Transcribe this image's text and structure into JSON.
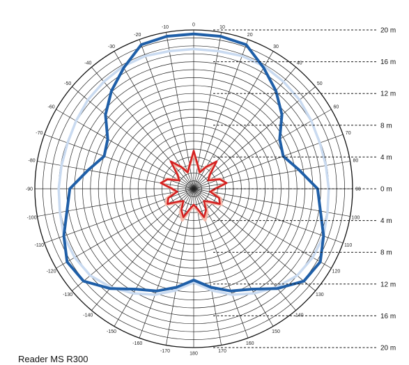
{
  "chart_data": {
    "type": "polar",
    "angle_labels": [
      {
        "deg": 0,
        "text": "0"
      },
      {
        "deg": 10,
        "text": "10"
      },
      {
        "deg": 20,
        "text": "20"
      },
      {
        "deg": 30,
        "text": "30"
      },
      {
        "deg": 40,
        "text": "40"
      },
      {
        "deg": 50,
        "text": "50"
      },
      {
        "deg": 60,
        "text": "60"
      },
      {
        "deg": 70,
        "text": "70"
      },
      {
        "deg": 80,
        "text": "80"
      },
      {
        "deg": 90,
        "text": "90"
      },
      {
        "deg": 100,
        "text": "100"
      },
      {
        "deg": 110,
        "text": "110"
      },
      {
        "deg": 120,
        "text": "120"
      },
      {
        "deg": 130,
        "text": "130"
      },
      {
        "deg": 140,
        "text": "140"
      },
      {
        "deg": 150,
        "text": "150"
      },
      {
        "deg": 160,
        "text": "160"
      },
      {
        "deg": 170,
        "text": "170"
      },
      {
        "deg": 180,
        "text": "180"
      },
      {
        "deg": -10,
        "text": "-10"
      },
      {
        "deg": -20,
        "text": "-20"
      },
      {
        "deg": -30,
        "text": "-30"
      },
      {
        "deg": -40,
        "text": "-40"
      },
      {
        "deg": -50,
        "text": "-50"
      },
      {
        "deg": -60,
        "text": "-60"
      },
      {
        "deg": -70,
        "text": "-70"
      },
      {
        "deg": -80,
        "text": "-80"
      },
      {
        "deg": -90,
        "text": "-90"
      },
      {
        "deg": -100,
        "text": "-100"
      },
      {
        "deg": -110,
        "text": "-110"
      },
      {
        "deg": -120,
        "text": "-120"
      },
      {
        "deg": -130,
        "text": "-130"
      },
      {
        "deg": -140,
        "text": "-140"
      },
      {
        "deg": -150,
        "text": "-150"
      },
      {
        "deg": -160,
        "text": "-160"
      },
      {
        "deg": -170,
        "text": "-170"
      }
    ],
    "distance_labels": [
      {
        "value": 20,
        "text": "20 m"
      },
      {
        "value": 16,
        "text": "16 m"
      },
      {
        "value": 12,
        "text": "12 m"
      },
      {
        "value": 8,
        "text": "8 m"
      },
      {
        "value": 4,
        "text": "4 m"
      },
      {
        "value": 0,
        "text": "0 m"
      },
      {
        "value": -4,
        "text": "4 m"
      },
      {
        "value": -8,
        "text": "8 m"
      },
      {
        "value": -12,
        "text": "12 m"
      },
      {
        "value": -16,
        "text": "16 m"
      },
      {
        "value": -20,
        "text": "20 m"
      }
    ],
    "radial_range_m": [
      0,
      20
    ],
    "series": [
      {
        "color": "#1f5fa8",
        "points": [
          [
            0,
            19.5
          ],
          [
            10,
            19.5
          ],
          [
            20,
            19.3
          ],
          [
            30,
            17.6
          ],
          [
            40,
            16.1
          ],
          [
            50,
            14.5
          ],
          [
            60,
            12.5
          ],
          [
            70,
            12.0
          ],
          [
            80,
            13.5
          ],
          [
            90,
            15.6
          ],
          [
            100,
            16.2
          ],
          [
            110,
            17.4
          ],
          [
            120,
            18.4
          ],
          [
            130,
            18.1
          ],
          [
            140,
            16.4
          ],
          [
            150,
            14.6
          ],
          [
            160,
            13.7
          ],
          [
            170,
            12.6
          ],
          [
            180,
            11.5
          ],
          [
            -170,
            12.6
          ],
          [
            -160,
            13.7
          ],
          [
            -150,
            14.6
          ],
          [
            -140,
            16.4
          ],
          [
            -130,
            18.1
          ],
          [
            -120,
            18.4
          ],
          [
            -110,
            17.4
          ],
          [
            -100,
            16.2
          ],
          [
            -90,
            15.6
          ],
          [
            -80,
            13.5
          ],
          [
            -70,
            12.0
          ],
          [
            -60,
            12.5
          ],
          [
            -50,
            14.5
          ],
          [
            -40,
            16.1
          ],
          [
            -30,
            17.6
          ],
          [
            -20,
            19.3
          ],
          [
            -10,
            19.5
          ]
        ]
      },
      {
        "color": "#c9daf0",
        "points": [
          [
            0,
            17.6
          ],
          [
            10,
            17.6
          ],
          [
            20,
            17.8
          ],
          [
            30,
            17.8
          ],
          [
            40,
            17.6
          ],
          [
            50,
            17.4
          ],
          [
            60,
            17.1
          ],
          [
            70,
            16.9
          ],
          [
            80,
            16.9
          ],
          [
            90,
            17.0
          ],
          [
            100,
            17.1
          ],
          [
            110,
            17.4
          ],
          [
            120,
            17.3
          ],
          [
            130,
            17.0
          ],
          [
            140,
            16.2
          ],
          [
            150,
            15.2
          ],
          [
            160,
            14.2
          ],
          [
            170,
            13.0
          ],
          [
            180,
            11.8
          ],
          [
            -170,
            13.0
          ],
          [
            -160,
            14.2
          ],
          [
            -150,
            15.2
          ],
          [
            -140,
            16.2
          ],
          [
            -130,
            17.0
          ],
          [
            -120,
            17.3
          ],
          [
            -110,
            17.4
          ],
          [
            -100,
            17.1
          ],
          [
            -90,
            17.0
          ],
          [
            -80,
            16.9
          ],
          [
            -70,
            16.9
          ],
          [
            -60,
            17.1
          ],
          [
            -50,
            17.4
          ],
          [
            -40,
            17.6
          ],
          [
            -30,
            17.8
          ],
          [
            -20,
            17.8
          ],
          [
            -10,
            17.6
          ]
        ]
      },
      {
        "color": "#f2b7a8",
        "points": [
          [
            0,
            4.4
          ],
          [
            10,
            3.0
          ],
          [
            20,
            2.2
          ],
          [
            30,
            3.2
          ],
          [
            40,
            4.0
          ],
          [
            50,
            2.6
          ],
          [
            60,
            2.2
          ],
          [
            70,
            3.6
          ],
          [
            80,
            4.1
          ],
          [
            90,
            2.7
          ],
          [
            100,
            2.3
          ],
          [
            110,
            3.6
          ],
          [
            120,
            4.0
          ],
          [
            130,
            2.7
          ],
          [
            140,
            2.2
          ],
          [
            150,
            3.4
          ],
          [
            160,
            4.2
          ],
          [
            170,
            2.7
          ],
          [
            180,
            2.2
          ],
          [
            -170,
            2.7
          ],
          [
            -160,
            4.2
          ],
          [
            -150,
            3.4
          ],
          [
            -140,
            2.2
          ],
          [
            -130,
            2.7
          ],
          [
            -120,
            4.0
          ],
          [
            -110,
            3.6
          ],
          [
            -100,
            2.3
          ],
          [
            -90,
            2.7
          ],
          [
            -80,
            4.1
          ],
          [
            -70,
            3.6
          ],
          [
            -60,
            2.2
          ],
          [
            -50,
            2.6
          ],
          [
            -40,
            4.0
          ],
          [
            -30,
            3.2
          ],
          [
            -20,
            2.2
          ],
          [
            -10,
            3.0
          ]
        ]
      },
      {
        "color": "#d42020",
        "points": [
          [
            0,
            4.8
          ],
          [
            10,
            3.0
          ],
          [
            20,
            2.2
          ],
          [
            30,
            3.2
          ],
          [
            40,
            4.5
          ],
          [
            50,
            2.6
          ],
          [
            60,
            2.1
          ],
          [
            70,
            3.5
          ],
          [
            80,
            4.2
          ],
          [
            90,
            2.7
          ],
          [
            100,
            2.1
          ],
          [
            110,
            3.4
          ],
          [
            120,
            3.8
          ],
          [
            130,
            2.5
          ],
          [
            140,
            2.0
          ],
          [
            150,
            3.1
          ],
          [
            160,
            3.8
          ],
          [
            170,
            2.5
          ],
          [
            180,
            2.0
          ],
          [
            -170,
            2.5
          ],
          [
            -160,
            3.8
          ],
          [
            -150,
            3.1
          ],
          [
            -140,
            2.0
          ],
          [
            -130,
            2.5
          ],
          [
            -120,
            3.8
          ],
          [
            -110,
            3.4
          ],
          [
            -100,
            2.1
          ],
          [
            -90,
            2.7
          ],
          [
            -80,
            4.2
          ],
          [
            -70,
            3.5
          ],
          [
            -60,
            2.1
          ],
          [
            -50,
            2.6
          ],
          [
            -40,
            4.5
          ],
          [
            -30,
            3.2
          ],
          [
            -20,
            2.2
          ],
          [
            -10,
            3.0
          ]
        ]
      }
    ],
    "grid": true
  },
  "caption": "Reader MS R300"
}
